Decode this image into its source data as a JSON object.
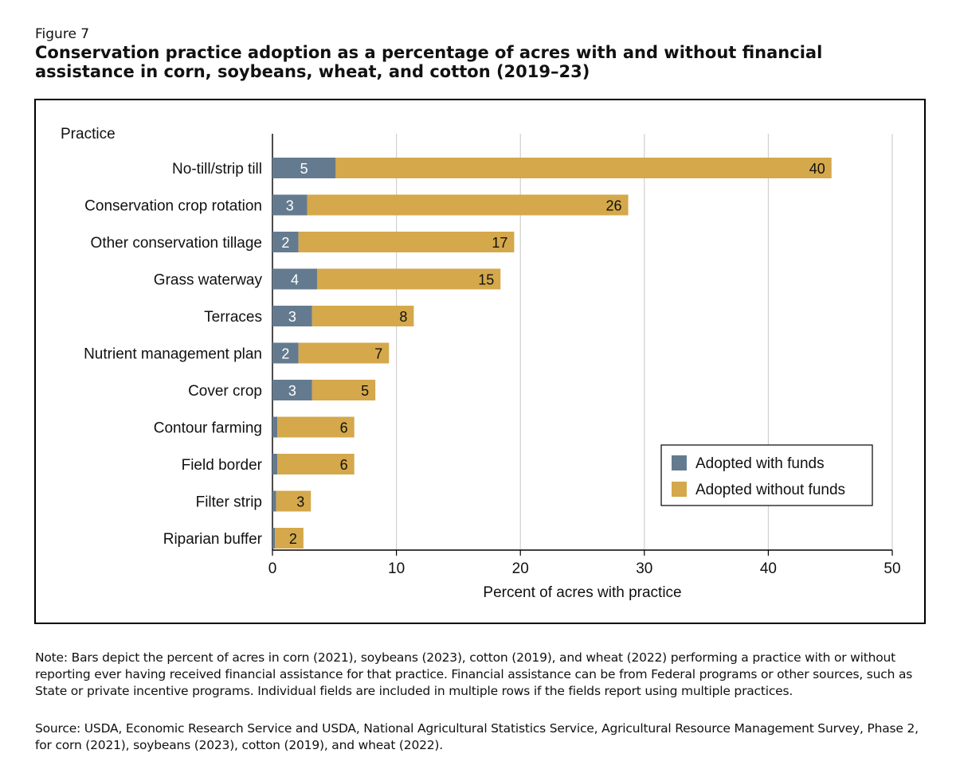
{
  "figure_label": "Figure 7",
  "title": "Conservation practice adoption as a percentage of acres with and without financial assistance in corn, soybeans, wheat, and cotton (2019–23)",
  "note": "Note: Bars depict the percent of acres in corn (2021), soybeans (2023), cotton (2019), and wheat (2022) performing a practice with or without reporting ever having received financial assistance for that practice. Financial assistance can be from Federal programs or other sources, such as State or private incentive programs. Individual fields are included in multiple rows if the fields report using multiple practices.",
  "source": "Source: USDA, Economic Research Service and USDA, National Agricultural Statistics Service, Agricultural Resource Management Survey, Phase 2, for corn (2021), soybeans (2023), cotton (2019), and wheat (2022).",
  "chart_data": {
    "type": "bar",
    "orientation": "horizontal",
    "stacked": true,
    "ylabel": "Practice",
    "xlabel": "Percent of acres with practice",
    "xlim": [
      0,
      50
    ],
    "xticks": [
      0,
      10,
      20,
      30,
      40,
      50
    ],
    "grid": true,
    "legend_position": "bottom-right",
    "categories": [
      "No-till/strip till",
      "Conservation crop rotation",
      "Other conservation tillage",
      "Grass waterway",
      "Terraces",
      "Nutrient management plan",
      "Cover crop",
      "Contour farming",
      "Field border",
      "Filter strip",
      "Riparian buffer"
    ],
    "series": [
      {
        "name": "Adopted with funds",
        "color": "#647b8f",
        "values": [
          5.1,
          2.8,
          2.1,
          3.6,
          3.2,
          2.1,
          3.2,
          0.4,
          0.4,
          0.3,
          0.2
        ],
        "labels": [
          "5",
          "3",
          "2",
          "4",
          "3",
          "2",
          "3",
          "",
          "",
          "",
          ""
        ]
      },
      {
        "name": "Adopted without funds",
        "color": "#d4a84b",
        "values": [
          40.0,
          25.9,
          17.4,
          14.8,
          8.2,
          7.3,
          5.1,
          6.2,
          6.2,
          2.8,
          2.3
        ],
        "labels": [
          "40",
          "26",
          "17",
          "15",
          "8",
          "7",
          "5",
          "6",
          "6",
          "3",
          "2"
        ]
      }
    ]
  }
}
